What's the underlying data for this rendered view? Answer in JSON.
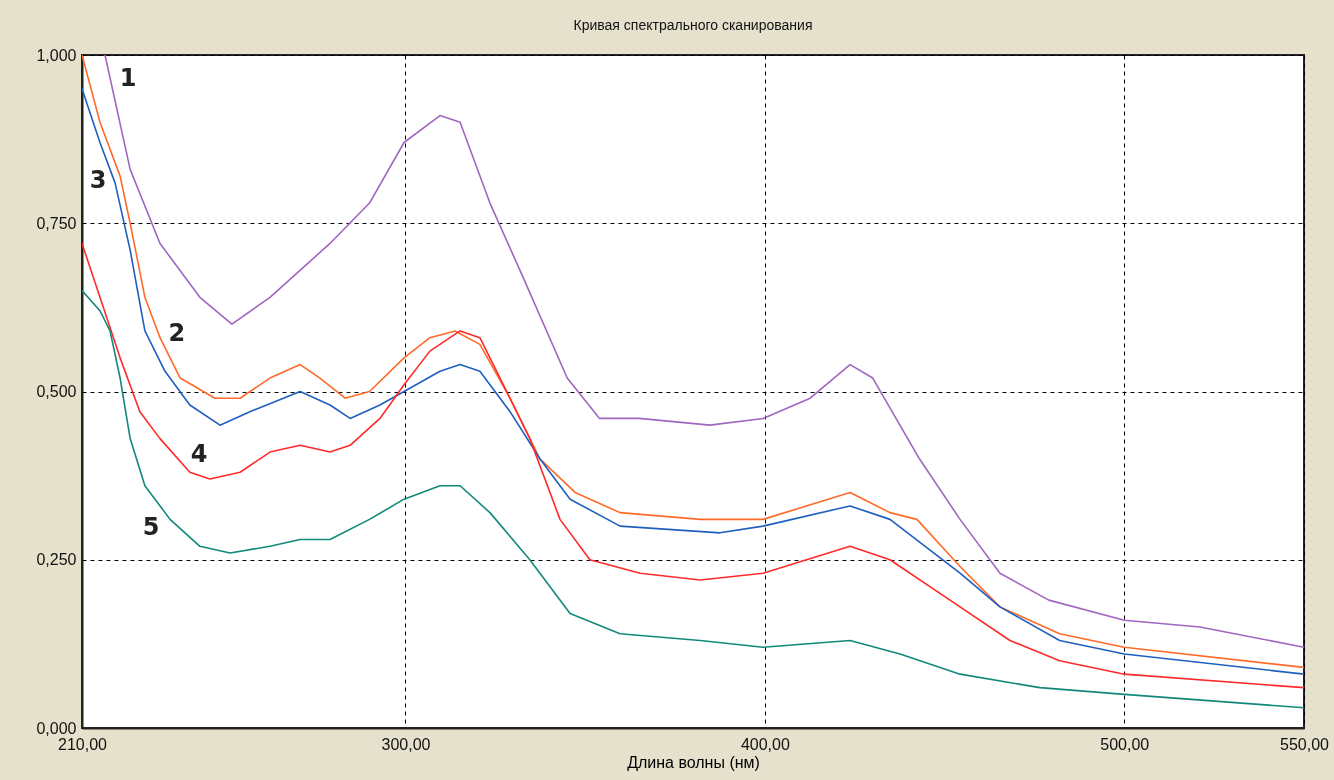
{
  "chart_data": {
    "type": "line",
    "title": "Кривая спектрального сканирования",
    "xlabel": "Длина волны (нм)",
    "xlim": [
      210,
      550
    ],
    "ylim": [
      0,
      1
    ],
    "xticks": [
      {
        "value": 210,
        "label": "210,00"
      },
      {
        "value": 300,
        "label": "300,00"
      },
      {
        "value": 400,
        "label": "400,00"
      },
      {
        "value": 500,
        "label": "500,00"
      },
      {
        "value": 550,
        "label": "550,00"
      }
    ],
    "yticks": [
      {
        "value": 0,
        "label": "0,000"
      },
      {
        "value": 0.25,
        "label": "0,250"
      },
      {
        "value": 0.5,
        "label": "0,500"
      },
      {
        "value": 0.75,
        "label": "0,750"
      },
      {
        "value": 1,
        "label": "1,000"
      }
    ],
    "grid": true,
    "series": [
      {
        "name": "1",
        "color": "#a066c0",
        "x": [
          216.4,
          223.4,
          231.7,
          242.8,
          251.7,
          262.3,
          279,
          290,
          299.6,
          309.6,
          315.2,
          323.5,
          332.7,
          345,
          354,
          365,
          384.7,
          399.5,
          412.6,
          423.7,
          430,
          443,
          454.3,
          465.4,
          479,
          500,
          521,
          550
        ],
        "values": [
          1.0,
          0.83,
          0.72,
          0.64,
          0.6,
          0.64,
          0.72,
          0.78,
          0.87,
          0.91,
          0.9,
          0.78,
          0.67,
          0.52,
          0.46,
          0.46,
          0.45,
          0.46,
          0.49,
          0.54,
          0.52,
          0.4,
          0.31,
          0.23,
          0.19,
          0.16,
          0.15,
          0.12
        ]
      },
      {
        "name": "2",
        "color": "#ff6a2a",
        "x": [
          210,
          215,
          220.6,
          223.4,
          227.5,
          231.7,
          237.3,
          247,
          254,
          262.3,
          270.7,
          276.2,
          283.2,
          290,
          299.6,
          306.8,
          313.8,
          320.7,
          329.1,
          337.4,
          347.2,
          359.7,
          382,
          399.5,
          423.7,
          434.8,
          442.3,
          454.3,
          465.4,
          482,
          500,
          550
        ],
        "values": [
          1.0,
          0.9,
          0.82,
          0.75,
          0.64,
          0.58,
          0.52,
          0.49,
          0.49,
          0.52,
          0.54,
          0.52,
          0.49,
          0.5,
          0.55,
          0.58,
          0.59,
          0.57,
          0.49,
          0.4,
          0.35,
          0.32,
          0.31,
          0.31,
          0.35,
          0.32,
          0.31,
          0.24,
          0.18,
          0.14,
          0.12,
          0.09
        ]
      },
      {
        "name": "3",
        "color": "#1f5fbf",
        "x": [
          210,
          215,
          219.2,
          223.4,
          227.5,
          233.1,
          240,
          248.4,
          256.7,
          270.7,
          279,
          284.6,
          292.9,
          299.6,
          309.6,
          315.2,
          320.7,
          329.1,
          337.4,
          345.8,
          359.7,
          387.5,
          399.5,
          423.7,
          434.8,
          454.3,
          465.4,
          482,
          500,
          550
        ],
        "values": [
          0.95,
          0.87,
          0.81,
          0.71,
          0.59,
          0.53,
          0.48,
          0.45,
          0.47,
          0.5,
          0.48,
          0.46,
          0.48,
          0.5,
          0.53,
          0.54,
          0.53,
          0.47,
          0.4,
          0.34,
          0.3,
          0.29,
          0.3,
          0.33,
          0.31,
          0.23,
          0.18,
          0.13,
          0.11,
          0.08
        ]
      },
      {
        "name": "4",
        "color": "#ff2a2a",
        "x": [
          210,
          215,
          220.6,
          226.1,
          231.7,
          240,
          245.6,
          254,
          262.3,
          270.7,
          279,
          284.6,
          292.9,
          299.6,
          306.8,
          315.2,
          320.7,
          326.3,
          334.6,
          343,
          351.3,
          365.3,
          382,
          399.5,
          423.7,
          434.8,
          451.5,
          468.2,
          482,
          500,
          550
        ],
        "values": [
          0.72,
          0.64,
          0.55,
          0.47,
          0.43,
          0.38,
          0.37,
          0.38,
          0.41,
          0.42,
          0.41,
          0.42,
          0.46,
          0.51,
          0.56,
          0.59,
          0.58,
          0.52,
          0.43,
          0.31,
          0.25,
          0.23,
          0.22,
          0.23,
          0.27,
          0.25,
          0.19,
          0.13,
          0.1,
          0.08,
          0.06
        ]
      },
      {
        "name": "5",
        "color": "#11897a",
        "x": [
          210,
          215,
          217.8,
          220.6,
          223.4,
          227.5,
          234.5,
          242.8,
          251.2,
          262.3,
          270.7,
          279,
          290,
          299.6,
          309.6,
          315.2,
          323.5,
          334.6,
          345.8,
          359.7,
          382,
          399.5,
          423.7,
          437.6,
          454.3,
          476.5,
          500,
          550
        ],
        "values": [
          0.65,
          0.62,
          0.59,
          0.52,
          0.43,
          0.36,
          0.31,
          0.27,
          0.26,
          0.27,
          0.28,
          0.28,
          0.31,
          0.34,
          0.36,
          0.36,
          0.32,
          0.25,
          0.17,
          0.14,
          0.13,
          0.12,
          0.13,
          0.11,
          0.08,
          0.06,
          0.05,
          0.03
        ]
      }
    ]
  }
}
